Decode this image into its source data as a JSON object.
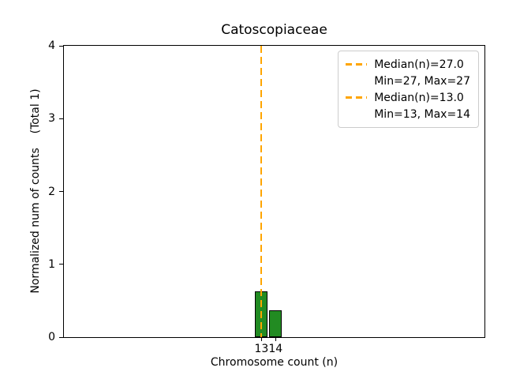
{
  "chart_data": {
    "type": "bar",
    "title": "Catoscopiaceae",
    "xlabel": "Chromosome count (n)",
    "ylabel": "Normalized num of counts    (Total 1)",
    "categories": [
      13,
      14
    ],
    "values": [
      0.63,
      0.37
    ],
    "xticks": [
      13,
      14
    ],
    "yticks": [
      0,
      1,
      2,
      3,
      4
    ],
    "xlim": [
      -1,
      28.8
    ],
    "ylim": [
      0,
      4
    ],
    "bar_width": 0.9,
    "grid": false,
    "colors": {
      "bar_fill": "#228B22",
      "bar_edge": "#000000",
      "median_line": "#FFA500",
      "axes_border": "#000000",
      "legend_border": "#cccccc",
      "text": "#000000"
    },
    "median_lines": [
      {
        "x": 13,
        "color": "#FFA500",
        "style": "dashed"
      }
    ],
    "legend": {
      "position": "upper-right",
      "entries": [
        {
          "swatch": "dashed-line",
          "color": "#FFA500",
          "label": "Median(n)=27.0"
        },
        {
          "swatch": "none",
          "color": "",
          "label": "Min=27, Max=27"
        },
        {
          "swatch": "dashed-line",
          "color": "#FFA500",
          "label": "Median(n)=13.0"
        },
        {
          "swatch": "none",
          "color": "",
          "label": "Min=13, Max=14"
        }
      ]
    }
  }
}
